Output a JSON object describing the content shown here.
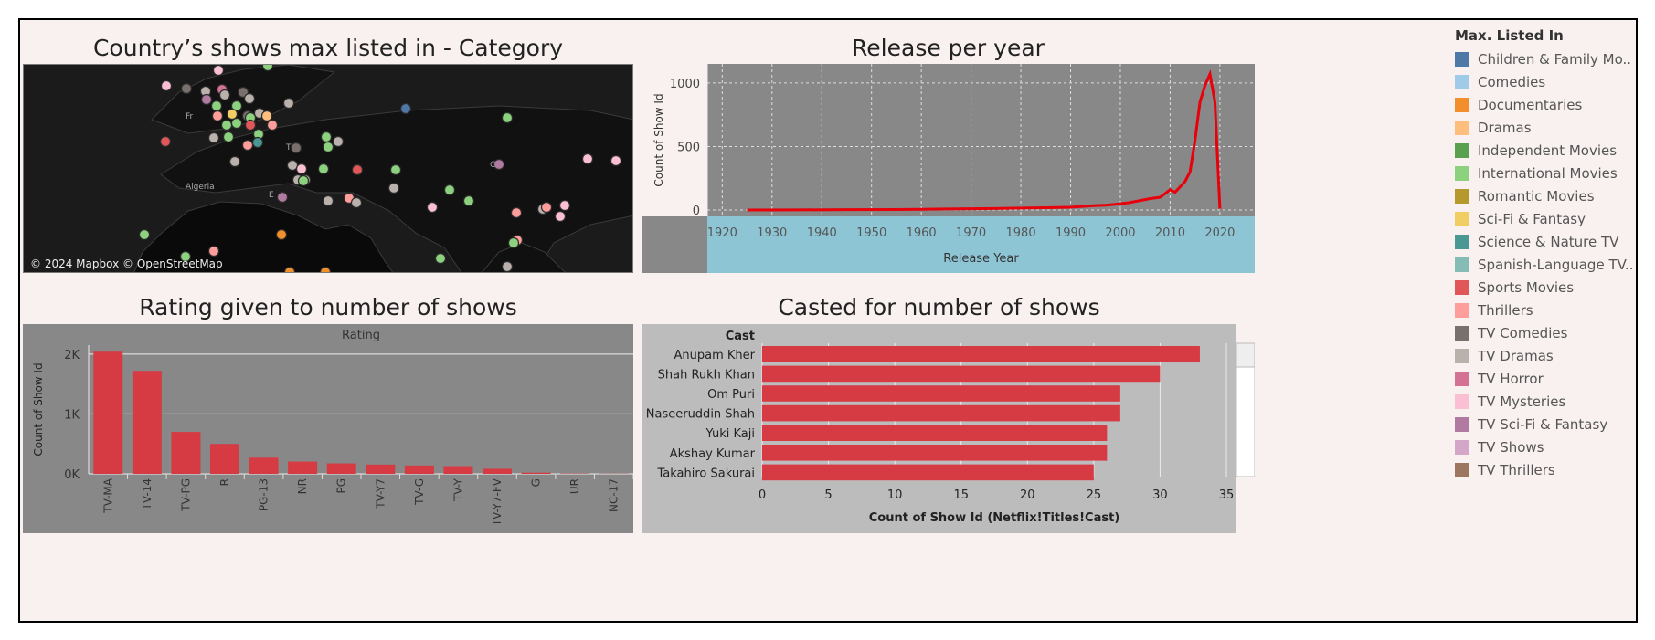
{
  "titles": {
    "map": "Country’s shows max listed in - Category",
    "release": "Release per year",
    "rating": "Rating given to number of shows",
    "cast": "Casted for number of shows"
  },
  "map": {
    "attribution": "© 2024 Mapbox © OpenStreetMap",
    "place_labels": [
      "Algeria",
      "Fr",
      "T",
      "E",
      "C"
    ]
  },
  "legend": {
    "title": "Max. Listed In",
    "items": [
      {
        "label": "Children & Family Mo..",
        "color": "#4e79a7"
      },
      {
        "label": "Comedies",
        "color": "#a0cbe8"
      },
      {
        "label": "Documentaries",
        "color": "#f28e2b"
      },
      {
        "label": "Dramas",
        "color": "#ffbe7d"
      },
      {
        "label": "Independent Movies",
        "color": "#59a14f"
      },
      {
        "label": "International Movies",
        "color": "#8cd17d"
      },
      {
        "label": "Romantic Movies",
        "color": "#b6992d"
      },
      {
        "label": "Sci-Fi & Fantasy",
        "color": "#f1ce63"
      },
      {
        "label": "Science & Nature TV",
        "color": "#499894"
      },
      {
        "label": "Spanish-Language TV..",
        "color": "#86bcb6"
      },
      {
        "label": "Sports Movies",
        "color": "#e15759"
      },
      {
        "label": "Thrillers",
        "color": "#ff9d9a"
      },
      {
        "label": "TV Comedies",
        "color": "#79706e"
      },
      {
        "label": "TV Dramas",
        "color": "#bab0ac"
      },
      {
        "label": "TV Horror",
        "color": "#d37295"
      },
      {
        "label": "TV Mysteries",
        "color": "#fabfd2"
      },
      {
        "label": "TV Sci-Fi & Fantasy",
        "color": "#b07aa1"
      },
      {
        "label": "TV Shows",
        "color": "#d4a6c8"
      },
      {
        "label": "TV Thrillers",
        "color": "#9d7660"
      }
    ]
  },
  "chart_data": [
    {
      "type": "line",
      "title": "Release per year",
      "xlabel": "Release Year",
      "ylabel": "Count of Show Id",
      "xlim": [
        1917,
        2027
      ],
      "ylim": [
        -50,
        1150
      ],
      "x_ticks": [
        1920,
        1930,
        1940,
        1950,
        1960,
        1970,
        1980,
        1990,
        2000,
        2010,
        2020
      ],
      "y_ticks": [
        0,
        500,
        1000
      ],
      "grid": true,
      "series": [
        {
          "color": "#e8000b",
          "x": [
            1925,
            1935,
            1945,
            1955,
            1960,
            1965,
            1970,
            1975,
            1980,
            1985,
            1990,
            1993,
            1995,
            1997,
            1999,
            2000,
            2002,
            2004,
            2006,
            2008,
            2010,
            2011,
            2013,
            2014,
            2015,
            2016,
            2017,
            2018,
            2019,
            2020
          ],
          "y": [
            0,
            1,
            3,
            4,
            6,
            8,
            10,
            12,
            16,
            18,
            22,
            30,
            35,
            38,
            45,
            50,
            60,
            75,
            90,
            100,
            160,
            140,
            225,
            300,
            550,
            850,
            980,
            1070,
            850,
            10
          ]
        }
      ]
    },
    {
      "type": "bar",
      "title": "Rating given to number of shows",
      "xlabel": "Rating",
      "ylabel": "Count of Show Id",
      "ylim": [
        0,
        2150
      ],
      "y_ticks": [
        0,
        1000,
        2000
      ],
      "y_tick_labels": [
        "0K",
        "1K",
        "2K"
      ],
      "color": "#d63b44",
      "categories": [
        "TV-MA",
        "TV-14",
        "TV-PG",
        "R",
        "PG-13",
        "NR",
        "PG",
        "TV-Y7",
        "TV-G",
        "TV-Y",
        "TV-Y7-FV",
        "G",
        "UR",
        "NC-17"
      ],
      "values": [
        2040,
        1720,
        700,
        500,
        270,
        205,
        175,
        155,
        140,
        130,
        85,
        20,
        5,
        3
      ]
    },
    {
      "type": "bar",
      "orientation": "horizontal",
      "title": "Casted for number of shows",
      "xlabel": "Count of Show Id (Netflix!Titles!Cast)",
      "ylabel": "Cast",
      "xlim": [
        0,
        35
      ],
      "x_ticks": [
        0,
        5,
        10,
        15,
        20,
        25,
        30,
        35
      ],
      "color": "#d63b44",
      "categories": [
        "Anupam Kher",
        "Shah Rukh Khan",
        "Om Puri",
        "Naseeruddin Shah",
        "Yuki Kaji",
        "Akshay Kumar",
        "Takahiro Sakurai"
      ],
      "values": [
        33,
        30,
        27,
        27,
        26,
        26,
        25
      ]
    }
  ]
}
